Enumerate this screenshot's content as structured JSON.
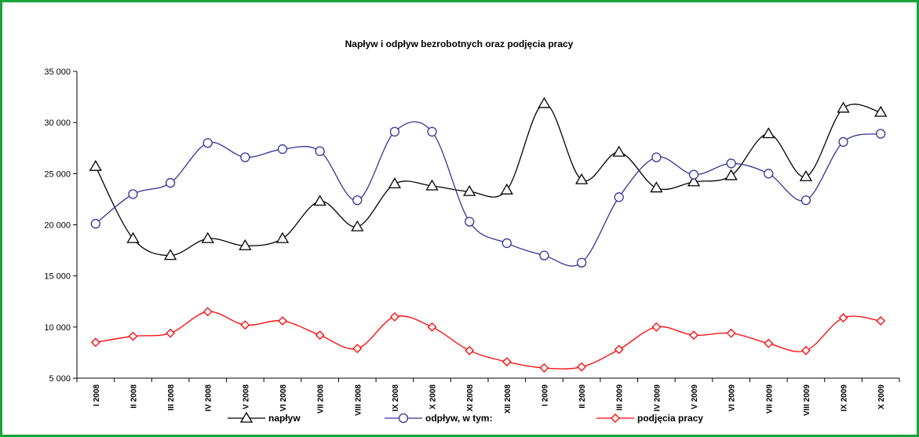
{
  "chart_data": {
    "type": "line",
    "title": "Napływ i odpływ bezrobotnych oraz podjęcia pracy",
    "categories": [
      "I 2008",
      "II 2008",
      "III 2008",
      "IV 2008",
      "V 2008",
      "VI 2008",
      "VII 2008",
      "VIII 2008",
      "IX 2008",
      "X 2008",
      "XI 2008",
      "XII 2008",
      "I 2009",
      "II 2009",
      "III 2009",
      "IV 2009",
      "V 2009",
      "VI 2009",
      "VII 2009",
      "VIII 2009",
      "IX 2009",
      "X 2009"
    ],
    "series": [
      {
        "name": "napływ",
        "color": "#000000",
        "marker": "triangle",
        "values": [
          25700,
          18650,
          17000,
          18650,
          17950,
          18650,
          22300,
          19800,
          24000,
          23800,
          23250,
          23400,
          31850,
          24400,
          27100,
          23600,
          24200,
          24800,
          28900,
          24700,
          31400,
          31000
        ]
      },
      {
        "name": "odpływ, w tym:",
        "color": "#333399",
        "marker": "circle",
        "values": [
          20100,
          23000,
          24100,
          28000,
          26600,
          27400,
          27200,
          22400,
          29100,
          29100,
          20300,
          18200,
          17000,
          16300,
          22700,
          26600,
          24900,
          26000,
          25000,
          22400,
          28100,
          28900
        ]
      },
      {
        "name": "podjęcia pracy",
        "color": "#ff0000",
        "marker": "diamond",
        "values": [
          8500,
          9100,
          9400,
          11500,
          10200,
          10600,
          9200,
          7900,
          11000,
          10000,
          7700,
          6600,
          6000,
          6100,
          7800,
          10000,
          9200,
          9400,
          8400,
          7700,
          10900,
          10600
        ]
      }
    ],
    "ylim": [
      5000,
      35000
    ],
    "yticks": [
      {
        "value": 5000,
        "label": "5 000"
      },
      {
        "value": 10000,
        "label": "10 000"
      },
      {
        "value": 15000,
        "label": "15 000"
      },
      {
        "value": 20000,
        "label": "20 000"
      },
      {
        "value": 25000,
        "label": "25 000"
      },
      {
        "value": 30000,
        "label": "30 000"
      },
      {
        "value": 35000,
        "label": "35 000"
      }
    ],
    "legend": "bottom"
  }
}
